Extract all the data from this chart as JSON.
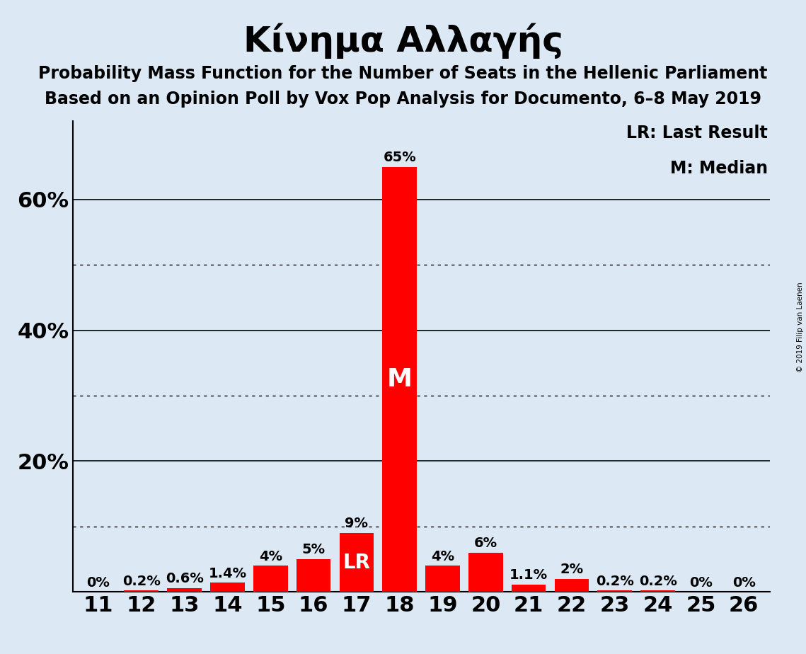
{
  "title": "Κίνημα Αλλαγής",
  "subtitle1": "Probability Mass Function for the Number of Seats in the Hellenic Parliament",
  "subtitle2": "Based on an Opinion Poll by Vox Pop Analysis for Documento, 6–8 May 2019",
  "copyright": "© 2019 Filip van Laenen",
  "seats": [
    11,
    12,
    13,
    14,
    15,
    16,
    17,
    18,
    19,
    20,
    21,
    22,
    23,
    24,
    25,
    26
  ],
  "values": [
    0.0,
    0.2,
    0.6,
    1.4,
    4.0,
    5.0,
    9.0,
    65.0,
    4.0,
    6.0,
    1.1,
    2.0,
    0.2,
    0.2,
    0.0,
    0.0
  ],
  "bar_color": "#ff0000",
  "background_color": "#dce9f5",
  "lr_seat": 17,
  "median_seat": 18,
  "legend_lr": "LR: Last Result",
  "legend_m": "M: Median",
  "solid_gridlines": [
    20,
    40,
    60
  ],
  "dotted_gridlines": [
    10,
    30,
    50
  ],
  "ylim": [
    0,
    72
  ],
  "bar_label_fontsize": 14,
  "title_fontsize": 36,
  "subtitle_fontsize": 17,
  "axis_fontsize": 22,
  "legend_fontsize": 17
}
